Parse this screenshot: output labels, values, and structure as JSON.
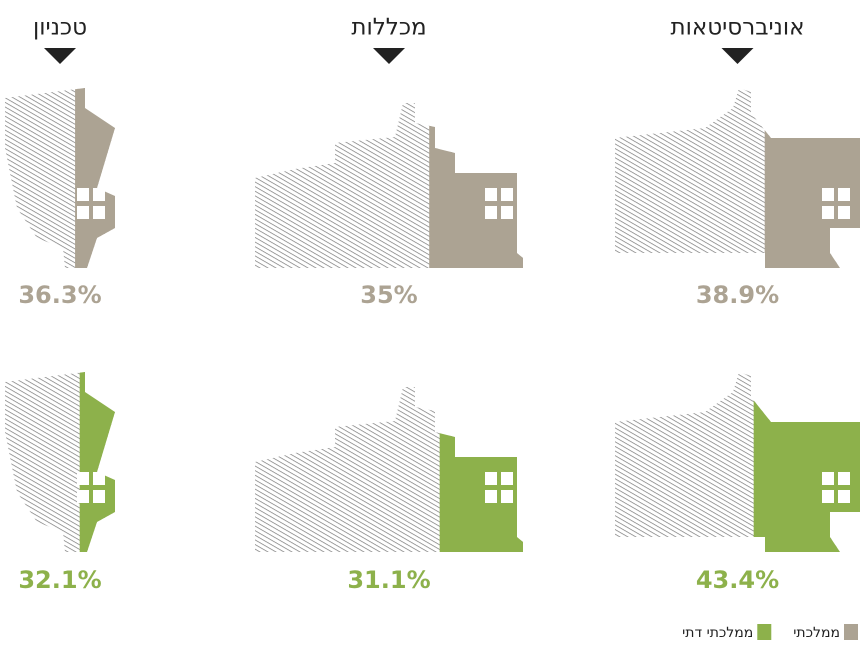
{
  "chart_data": {
    "type": "pictogram",
    "categories": [
      "טכניון",
      "מכללות",
      "אוניברסיטאות"
    ],
    "ylim": [
      0,
      100
    ],
    "series": [
      {
        "name": "ממלכתי",
        "color": "#aca393",
        "values": [
          36.3,
          35,
          38.9
        ],
        "value_labels": [
          "36.3%",
          "35%",
          "38.9%"
        ]
      },
      {
        "name": "ממלכתי דתי",
        "color": "#8db14b",
        "values": [
          32.1,
          31.1,
          43.4
        ],
        "value_labels": [
          "32.1%",
          "31.1%",
          "43.4%"
        ]
      }
    ]
  }
}
